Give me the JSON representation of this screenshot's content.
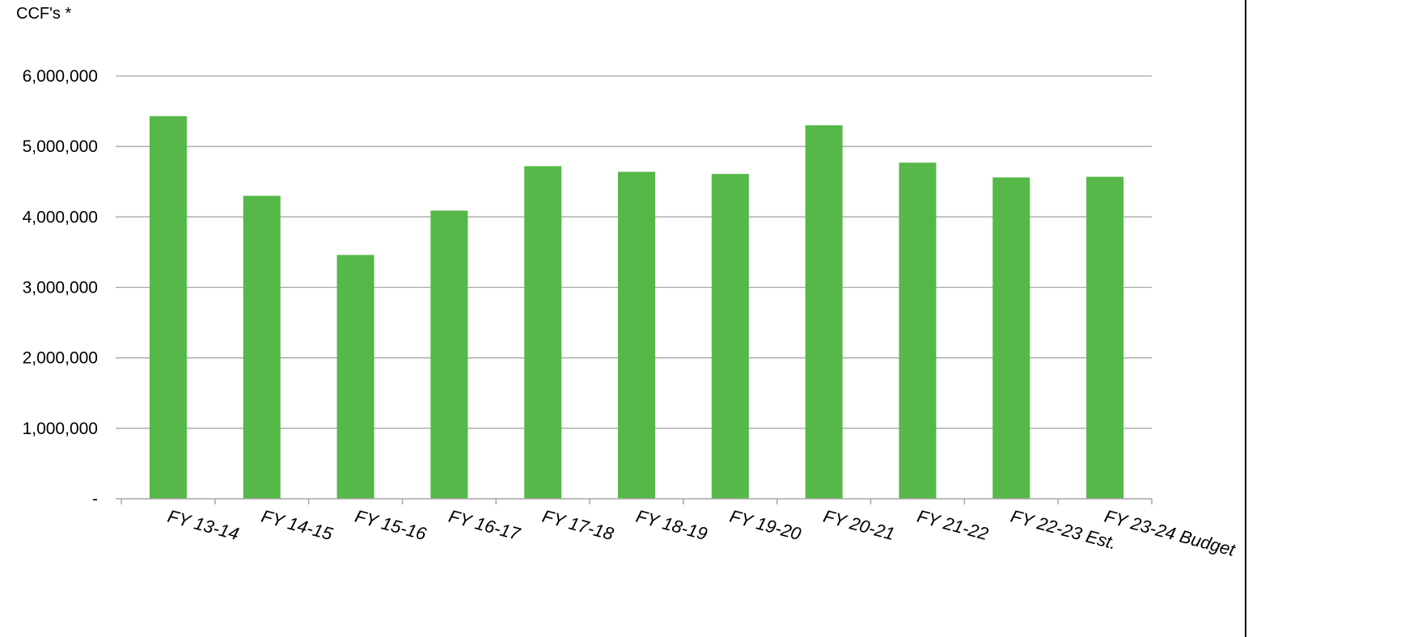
{
  "chart_data": {
    "type": "bar",
    "title": "",
    "unit_label": "CCF's *",
    "xlabel": "",
    "ylabel": "",
    "categories": [
      "FY 13-14",
      "FY 14-15",
      "FY 15-16",
      "FY 16-17",
      "FY 17-18",
      "FY 18-19",
      "FY 19-20",
      "FY 20-21",
      "FY 21-22",
      "FY 22-23 Est.",
      "FY 23-24 Budget"
    ],
    "values": [
      5430000,
      4300000,
      3460000,
      4090000,
      4720000,
      4640000,
      4610000,
      5300000,
      4770000,
      4560000,
      4570000
    ],
    "ylim": [
      0,
      6000000
    ],
    "yticks": [
      0,
      1000000,
      2000000,
      3000000,
      4000000,
      5000000,
      6000000
    ],
    "ytick_labels": [
      "-",
      "1,000,000",
      "2,000,000",
      "3,000,000",
      "4,000,000",
      "5,000,000",
      "6,000,000"
    ],
    "grid": true,
    "legend": "none",
    "bar_color": "#55b848",
    "grid_color": "#a6a6a6",
    "axis_color": "#a6a6a6"
  }
}
